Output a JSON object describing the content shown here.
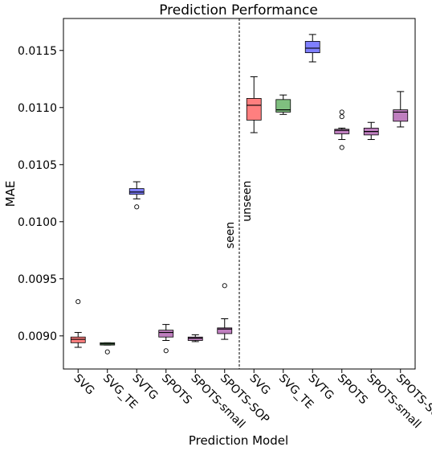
{
  "chart_data": {
    "type": "boxplot",
    "title": "Prediction Performance",
    "xlabel": "Prediction Model",
    "ylabel": "MAE",
    "ylim": [
      0.00871,
      0.01178
    ],
    "y_ticks": [
      "0.0090",
      "0.0095",
      "0.0100",
      "0.0105",
      "0.0110",
      "0.0115"
    ],
    "y_tick_values": [
      0.009,
      0.0095,
      0.01,
      0.0105,
      0.011,
      0.0115
    ],
    "annotations": {
      "left": "seen",
      "right": "unseen"
    },
    "colors": {
      "SVG": "#ff7f7f",
      "SVG_TE": "#7fbf7f",
      "SVTG": "#7f7fff",
      "SPOTS": "#bf7fbf",
      "SPOTS-small": "#bf7fbf",
      "SPOTS-SOP": "#bf7fbf"
    },
    "boxes": [
      {
        "label": "SVG",
        "group": "seen",
        "min": 0.0089,
        "q1": 0.00894,
        "median": 0.00897,
        "q3": 0.00899,
        "max": 0.00903,
        "outliers": [
          0.0093
        ]
      },
      {
        "label": "SVG_TE",
        "group": "seen",
        "min": 0.00892,
        "q1": 0.00892,
        "median": 0.00893,
        "q3": 0.00894,
        "max": 0.00894,
        "outliers": [
          0.00886
        ]
      },
      {
        "label": "SVTG",
        "group": "seen",
        "min": 0.0102,
        "q1": 0.01024,
        "median": 0.01026,
        "q3": 0.01029,
        "max": 0.01035,
        "outliers": [
          0.01013
        ]
      },
      {
        "label": "SPOTS",
        "group": "seen",
        "min": 0.00896,
        "q1": 0.00899,
        "median": 0.00903,
        "q3": 0.00905,
        "max": 0.0091,
        "outliers": [
          0.00887
        ]
      },
      {
        "label": "SPOTS-small",
        "group": "seen",
        "min": 0.00895,
        "q1": 0.00896,
        "median": 0.00898,
        "q3": 0.00899,
        "max": 0.00901,
        "outliers": []
      },
      {
        "label": "SPOTS-SOP",
        "group": "seen",
        "min": 0.00897,
        "q1": 0.00902,
        "median": 0.00906,
        "q3": 0.00907,
        "max": 0.00915,
        "outliers": [
          0.00944
        ]
      },
      {
        "label": "SVG",
        "group": "unseen",
        "min": 0.01078,
        "q1": 0.01089,
        "median": 0.01102,
        "q3": 0.01108,
        "max": 0.01127,
        "outliers": []
      },
      {
        "label": "SVG_TE",
        "group": "unseen",
        "min": 0.01094,
        "q1": 0.01096,
        "median": 0.01098,
        "q3": 0.01107,
        "max": 0.01111,
        "outliers": []
      },
      {
        "label": "SVTG",
        "group": "unseen",
        "min": 0.0114,
        "q1": 0.01148,
        "median": 0.01152,
        "q3": 0.01158,
        "max": 0.01164,
        "outliers": []
      },
      {
        "label": "SPOTS",
        "group": "unseen",
        "min": 0.01072,
        "q1": 0.01077,
        "median": 0.0108,
        "q3": 0.01081,
        "max": 0.01082,
        "outliers": [
          0.01065,
          0.01092,
          0.01096
        ]
      },
      {
        "label": "SPOTS-small",
        "group": "unseen",
        "min": 0.01072,
        "q1": 0.01076,
        "median": 0.01079,
        "q3": 0.01082,
        "max": 0.01087,
        "outliers": []
      },
      {
        "label": "SPOTS-SOP",
        "group": "unseen",
        "min": 0.01083,
        "q1": 0.01088,
        "median": 0.01096,
        "q3": 0.01098,
        "max": 0.01114,
        "outliers": []
      }
    ]
  }
}
